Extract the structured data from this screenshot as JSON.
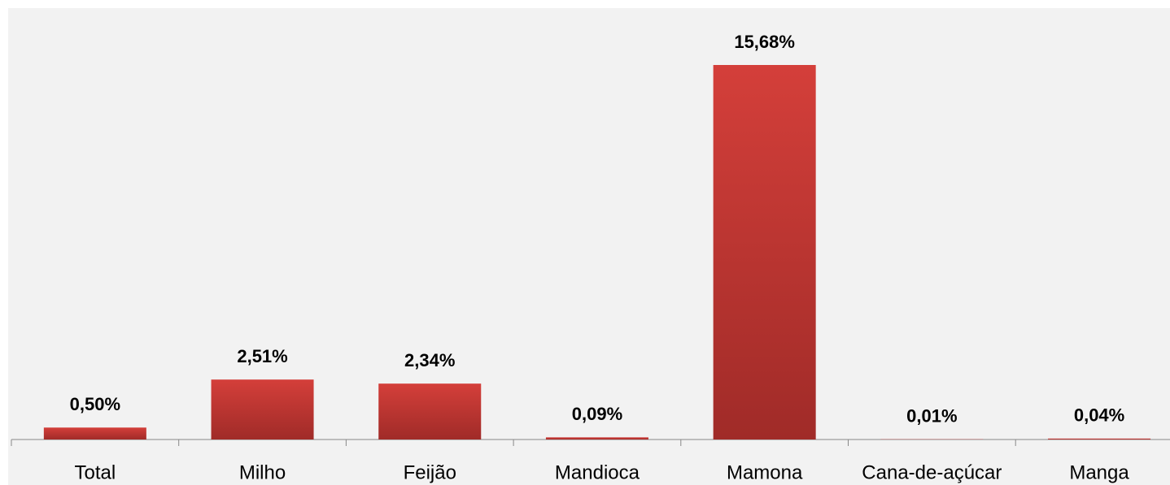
{
  "chart_data": {
    "type": "bar",
    "categories": [
      "Total",
      "Milho",
      "Feijão",
      "Mandioca",
      "Mamona",
      "Cana-de-açúcar",
      "Manga"
    ],
    "values": [
      0.5,
      2.51,
      2.34,
      0.09,
      15.68,
      0.01,
      0.04
    ],
    "value_labels": [
      "0,50%",
      "2,51%",
      "2,34%",
      "0,09%",
      "15,68%",
      "0,01%",
      "0,04%"
    ],
    "color": "#d43f3a"
  }
}
